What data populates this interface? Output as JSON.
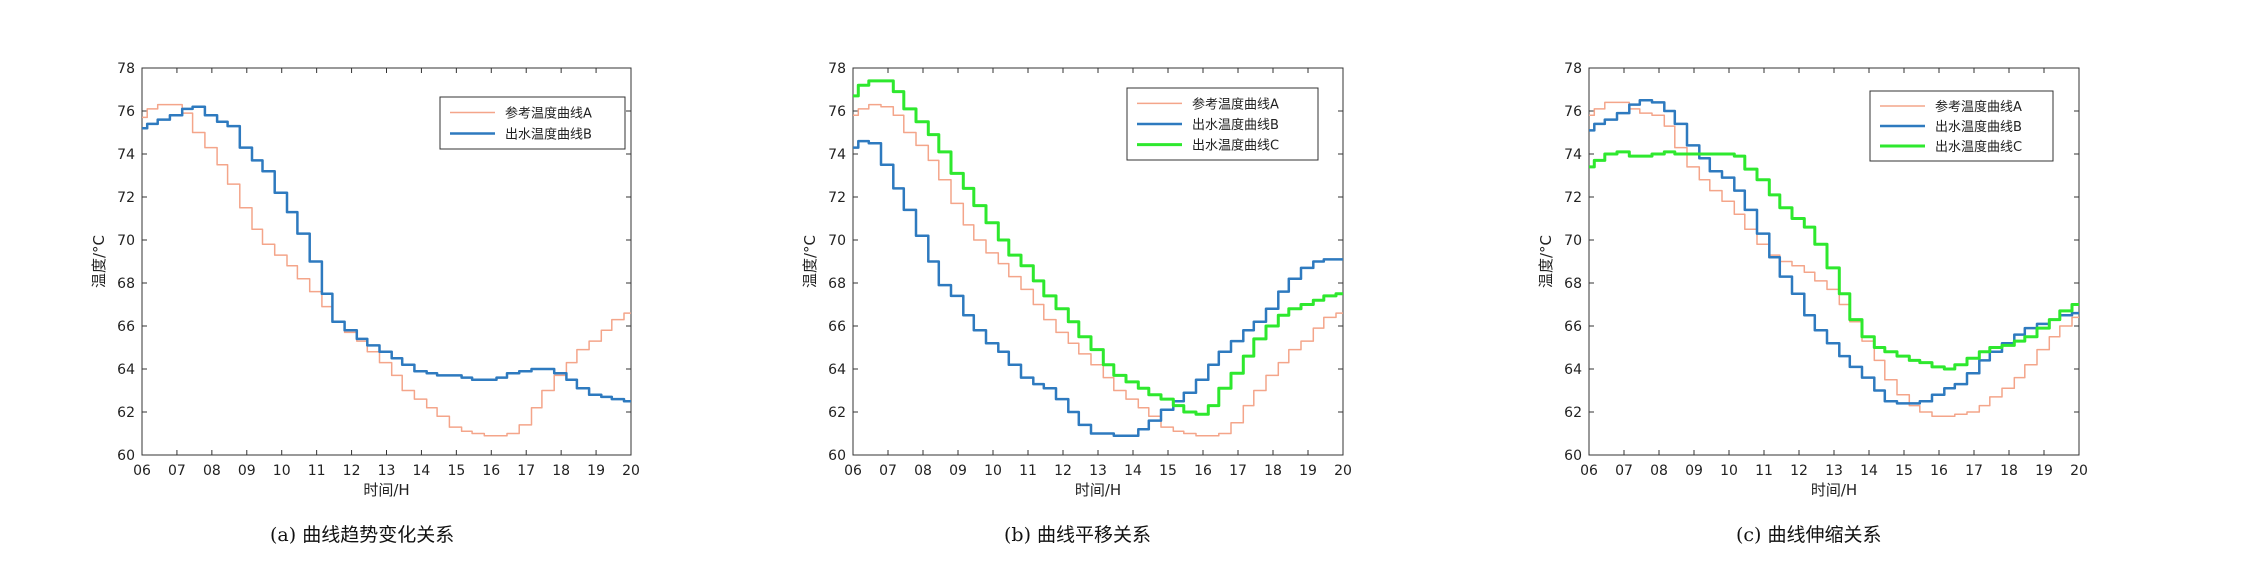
{
  "panels": [
    {
      "caption": "(a)  曲线趋势变化关系",
      "chart_data": {
        "type": "line",
        "xlabel": "时间/H",
        "ylabel": "温度/°C",
        "xlim": [
          6,
          20
        ],
        "ylim": [
          60,
          78
        ],
        "xticks": [
          "06",
          "07",
          "08",
          "09",
          "10",
          "11",
          "12",
          "13",
          "14",
          "15",
          "16",
          "17",
          "18",
          "19",
          "20"
        ],
        "yticks": [
          "60",
          "62",
          "64",
          "66",
          "68",
          "70",
          "72",
          "74",
          "76",
          "78"
        ],
        "grid": false,
        "legend_position": "top-right",
        "series": [
          {
            "name": "参考温度曲线A",
            "color": "#f4a58a",
            "width": 1.5,
            "x": [
              6,
              6.3,
              6.6,
              7,
              7.3,
              7.6,
              8,
              8.3,
              8.6,
              9,
              9.3,
              9.6,
              10,
              10.3,
              10.6,
              11,
              11.3,
              11.6,
              12,
              12.3,
              12.6,
              13,
              13.3,
              13.6,
              14,
              14.3,
              14.6,
              15,
              15.3,
              15.6,
              16,
              16.3,
              16.6,
              17,
              17.3,
              17.6,
              18,
              18.3,
              18.6,
              19,
              19.3,
              19.6,
              20
            ],
            "y": [
              75.7,
              76.1,
              76.3,
              76.3,
              75.9,
              75.0,
              74.3,
              73.5,
              72.6,
              71.5,
              70.5,
              69.8,
              69.3,
              68.8,
              68.2,
              67.6,
              66.9,
              66.2,
              65.7,
              65.3,
              64.8,
              64.3,
              63.7,
              63.0,
              62.6,
              62.2,
              61.8,
              61.3,
              61.1,
              61.0,
              60.9,
              60.9,
              61.0,
              61.4,
              62.2,
              63.0,
              63.7,
              64.3,
              64.9,
              65.3,
              65.8,
              66.3,
              66.6
            ]
          },
          {
            "name": "出水温度曲线B",
            "color": "#2e7abf",
            "width": 2.5,
            "x": [
              6,
              6.3,
              6.6,
              7,
              7.3,
              7.6,
              8,
              8.3,
              8.6,
              9,
              9.3,
              9.6,
              10,
              10.3,
              10.6,
              11,
              11.3,
              11.6,
              12,
              12.3,
              12.6,
              13,
              13.3,
              13.6,
              14,
              14.3,
              14.6,
              15,
              15.3,
              15.6,
              16,
              16.3,
              16.6,
              17,
              17.3,
              17.6,
              18,
              18.3,
              18.6,
              19,
              19.3,
              19.6,
              20
            ],
            "y": [
              75.2,
              75.4,
              75.6,
              75.8,
              76.1,
              76.2,
              75.8,
              75.5,
              75.3,
              74.3,
              73.7,
              73.2,
              72.2,
              71.3,
              70.3,
              69.0,
              67.5,
              66.2,
              65.8,
              65.4,
              65.1,
              64.8,
              64.5,
              64.2,
              63.9,
              63.8,
              63.7,
              63.7,
              63.6,
              63.5,
              63.5,
              63.6,
              63.8,
              63.9,
              64.0,
              64.0,
              63.8,
              63.5,
              63.1,
              62.8,
              62.7,
              62.6,
              62.5
            ]
          }
        ]
      }
    },
    {
      "caption": "(b)  曲线平移关系",
      "chart_data": {
        "type": "line",
        "xlabel": "时间/H",
        "ylabel": "温度/°C",
        "xlim": [
          6,
          20
        ],
        "ylim": [
          60,
          78
        ],
        "xticks": [
          "06",
          "07",
          "08",
          "09",
          "10",
          "11",
          "12",
          "13",
          "14",
          "15",
          "16",
          "17",
          "18",
          "19",
          "20"
        ],
        "yticks": [
          "60",
          "62",
          "64",
          "66",
          "68",
          "70",
          "72",
          "74",
          "76",
          "78"
        ],
        "grid": false,
        "legend_position": "top-right",
        "series": [
          {
            "name": "参考温度曲线A",
            "color": "#f4a58a",
            "width": 1.5,
            "x": [
              6,
              6.3,
              6.6,
              7,
              7.3,
              7.6,
              8,
              8.3,
              8.6,
              9,
              9.3,
              9.6,
              10,
              10.3,
              10.6,
              11,
              11.3,
              11.6,
              12,
              12.3,
              12.6,
              13,
              13.3,
              13.6,
              14,
              14.3,
              14.6,
              15,
              15.3,
              15.6,
              16,
              16.3,
              16.6,
              17,
              17.3,
              17.6,
              18,
              18.3,
              18.6,
              19,
              19.3,
              19.6,
              20
            ],
            "y": [
              75.8,
              76.1,
              76.3,
              76.2,
              75.8,
              75.0,
              74.4,
              73.7,
              72.8,
              71.7,
              70.7,
              70.0,
              69.4,
              68.9,
              68.3,
              67.7,
              67.0,
              66.3,
              65.7,
              65.2,
              64.7,
              64.2,
              63.6,
              63.0,
              62.6,
              62.2,
              61.8,
              61.3,
              61.1,
              61.0,
              60.9,
              60.9,
              61.0,
              61.5,
              62.3,
              63.0,
              63.7,
              64.3,
              64.9,
              65.3,
              65.9,
              66.4,
              66.6
            ]
          },
          {
            "name": "出水温度曲线B",
            "color": "#2e7abf",
            "width": 2.5,
            "x": [
              6,
              6.3,
              6.6,
              7,
              7.3,
              7.6,
              8,
              8.3,
              8.6,
              9,
              9.3,
              9.6,
              10,
              10.3,
              10.6,
              11,
              11.3,
              11.6,
              12,
              12.3,
              12.6,
              13,
              13.3,
              13.6,
              14,
              14.3,
              14.6,
              15,
              15.3,
              15.6,
              16,
              16.3,
              16.6,
              17,
              17.3,
              17.6,
              18,
              18.3,
              18.6,
              19,
              19.3,
              19.6,
              20
            ],
            "y": [
              74.3,
              74.6,
              74.5,
              73.5,
              72.4,
              71.4,
              70.2,
              69.0,
              67.9,
              67.4,
              66.5,
              65.8,
              65.2,
              64.8,
              64.2,
              63.6,
              63.3,
              63.1,
              62.6,
              62.0,
              61.4,
              61.0,
              61.0,
              60.9,
              60.9,
              61.2,
              61.6,
              62.1,
              62.5,
              62.9,
              63.5,
              64.2,
              64.8,
              65.3,
              65.8,
              66.2,
              66.8,
              67.6,
              68.2,
              68.7,
              69.0,
              69.1,
              69.1
            ]
          },
          {
            "name": "出水温度曲线C",
            "color": "#2ee82e",
            "width": 3,
            "x": [
              6,
              6.3,
              6.6,
              7,
              7.3,
              7.6,
              8,
              8.3,
              8.6,
              9,
              9.3,
              9.6,
              10,
              10.3,
              10.6,
              11,
              11.3,
              11.6,
              12,
              12.3,
              12.6,
              13,
              13.3,
              13.6,
              14,
              14.3,
              14.6,
              15,
              15.3,
              15.6,
              16,
              16.3,
              16.6,
              17,
              17.3,
              17.6,
              18,
              18.3,
              18.6,
              19,
              19.3,
              19.6,
              20
            ],
            "y": [
              76.7,
              77.2,
              77.4,
              77.4,
              76.9,
              76.1,
              75.5,
              74.9,
              74.1,
              73.1,
              72.4,
              71.6,
              70.8,
              70.0,
              69.3,
              68.8,
              68.1,
              67.4,
              66.8,
              66.2,
              65.5,
              64.9,
              64.2,
              63.7,
              63.4,
              63.1,
              62.8,
              62.6,
              62.3,
              62.0,
              61.9,
              62.3,
              63.1,
              63.8,
              64.6,
              65.4,
              66.0,
              66.5,
              66.8,
              67.0,
              67.2,
              67.4,
              67.5
            ]
          }
        ]
      }
    },
    {
      "caption": "(c)  曲线伸缩关系",
      "chart_data": {
        "type": "line",
        "xlabel": "时间/H",
        "ylabel": "温度/°C",
        "xlim": [
          6,
          20
        ],
        "ylim": [
          60,
          78
        ],
        "xticks": [
          "06",
          "07",
          "08",
          "09",
          "10",
          "11",
          "12",
          "13",
          "14",
          "15",
          "16",
          "17",
          "18",
          "19",
          "20"
        ],
        "yticks": [
          "60",
          "62",
          "64",
          "66",
          "68",
          "70",
          "72",
          "74",
          "76",
          "78"
        ],
        "grid": false,
        "legend_position": "top-right",
        "series": [
          {
            "name": "参考温度曲线A",
            "color": "#f4a58a",
            "width": 1.5,
            "x": [
              6,
              6.3,
              6.6,
              7,
              7.3,
              7.6,
              8,
              8.3,
              8.6,
              9,
              9.3,
              9.6,
              10,
              10.3,
              10.6,
              11,
              11.3,
              11.6,
              12,
              12.3,
              12.6,
              13,
              13.3,
              13.6,
              14,
              14.3,
              14.6,
              15,
              15.3,
              15.6,
              16,
              16.3,
              16.6,
              17,
              17.3,
              17.6,
              18,
              18.3,
              18.6,
              19,
              19.3,
              19.6,
              20
            ],
            "y": [
              75.8,
              76.1,
              76.4,
              76.4,
              76.1,
              75.9,
              75.8,
              75.3,
              74.3,
              73.4,
              72.8,
              72.3,
              71.8,
              71.2,
              70.5,
              69.8,
              69.3,
              69.0,
              68.8,
              68.5,
              68.1,
              67.7,
              67.0,
              66.2,
              65.3,
              64.4,
              63.5,
              62.8,
              62.3,
              62.0,
              61.8,
              61.8,
              61.9,
              62.0,
              62.3,
              62.7,
              63.1,
              63.6,
              64.2,
              64.9,
              65.5,
              66.0,
              66.4
            ]
          },
          {
            "name": "出水温度曲线B",
            "color": "#2e7abf",
            "width": 2.5,
            "x": [
              6,
              6.3,
              6.6,
              7,
              7.3,
              7.6,
              8,
              8.3,
              8.6,
              9,
              9.3,
              9.6,
              10,
              10.3,
              10.6,
              11,
              11.3,
              11.6,
              12,
              12.3,
              12.6,
              13,
              13.3,
              13.6,
              14,
              14.3,
              14.6,
              15,
              15.3,
              15.6,
              16,
              16.3,
              16.6,
              17,
              17.3,
              17.6,
              18,
              18.3,
              18.6,
              19,
              19.3,
              19.6,
              20
            ],
            "y": [
              75.1,
              75.4,
              75.6,
              75.9,
              76.3,
              76.5,
              76.4,
              76.0,
              75.4,
              74.4,
              73.8,
              73.2,
              72.9,
              72.3,
              71.4,
              70.3,
              69.2,
              68.3,
              67.5,
              66.5,
              65.8,
              65.2,
              64.6,
              64.1,
              63.6,
              63.0,
              62.5,
              62.4,
              62.4,
              62.5,
              62.8,
              63.1,
              63.3,
              63.8,
              64.4,
              64.8,
              65.2,
              65.6,
              65.9,
              66.1,
              66.3,
              66.5,
              66.6
            ]
          },
          {
            "name": "出水温度曲线C",
            "color": "#2ee82e",
            "width": 3,
            "x": [
              6,
              6.3,
              6.6,
              7,
              7.3,
              7.6,
              8,
              8.3,
              8.6,
              9,
              9.3,
              9.6,
              10,
              10.3,
              10.6,
              11,
              11.3,
              11.6,
              12,
              12.3,
              12.6,
              13,
              13.3,
              13.6,
              14,
              14.3,
              14.6,
              15,
              15.3,
              15.6,
              16,
              16.3,
              16.6,
              17,
              17.3,
              17.6,
              18,
              18.3,
              18.6,
              19,
              19.3,
              19.6,
              20
            ],
            "y": [
              73.4,
              73.7,
              74.0,
              74.1,
              73.9,
              73.9,
              74.0,
              74.1,
              74.0,
              74.0,
              74.0,
              74.0,
              74.0,
              73.9,
              73.3,
              72.8,
              72.1,
              71.5,
              71.0,
              70.6,
              69.8,
              68.7,
              67.5,
              66.3,
              65.5,
              65.0,
              64.8,
              64.6,
              64.4,
              64.3,
              64.1,
              64.0,
              64.2,
              64.5,
              64.8,
              65.0,
              65.1,
              65.3,
              65.5,
              65.9,
              66.3,
              66.7,
              67.0
            ]
          }
        ]
      }
    }
  ]
}
